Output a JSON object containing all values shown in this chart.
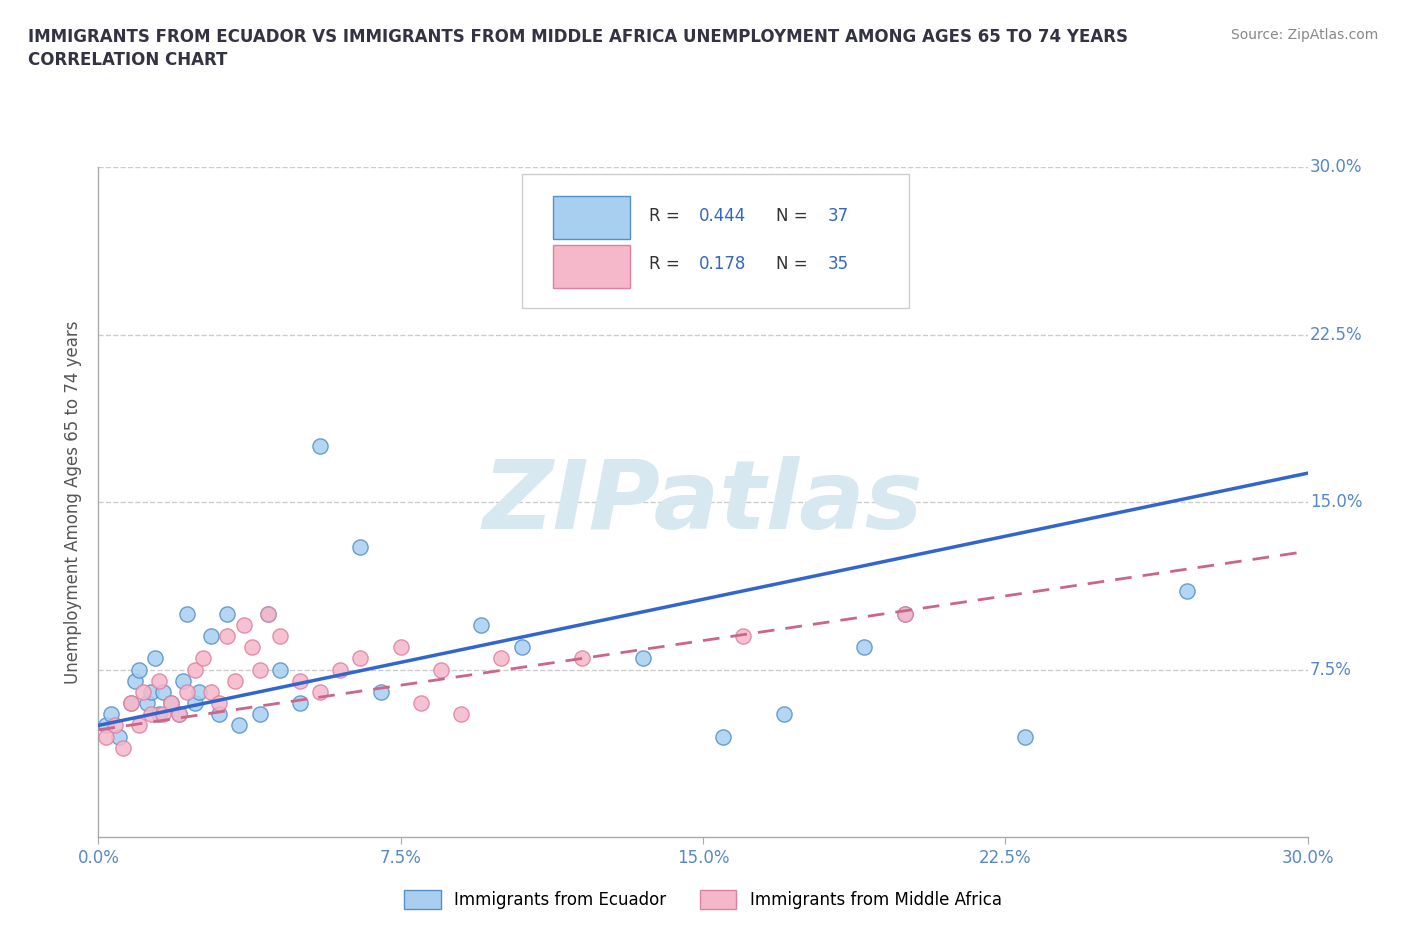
{
  "title_line1": "IMMIGRANTS FROM ECUADOR VS IMMIGRANTS FROM MIDDLE AFRICA UNEMPLOYMENT AMONG AGES 65 TO 74 YEARS",
  "title_line2": "CORRELATION CHART",
  "source_text": "Source: ZipAtlas.com",
  "ylabel": "Unemployment Among Ages 65 to 74 years",
  "xlim": [
    0.0,
    0.3
  ],
  "ylim": [
    0.0,
    0.3
  ],
  "xticks": [
    0.0,
    0.075,
    0.15,
    0.225,
    0.3
  ],
  "yticks": [
    0.075,
    0.15,
    0.225,
    0.3
  ],
  "xticklabels": [
    "0.0%",
    "7.5%",
    "15.0%",
    "22.5%",
    "30.0%"
  ],
  "yticklabels_right": [
    "7.5%",
    "15.0%",
    "22.5%",
    "30.0%"
  ],
  "ecuador_color": "#a8cff0",
  "ecuador_edge": "#5590c8",
  "middle_africa_color": "#f5b8cb",
  "middle_africa_edge": "#e080a0",
  "ecuador_line_color": "#3366cc",
  "middle_africa_line_color": "#cc6688",
  "ecuador_R": 0.444,
  "ecuador_N": 37,
  "middle_africa_R": 0.178,
  "middle_africa_N": 35,
  "watermark": "ZIPatlas",
  "legend_label_ecuador": "Immigrants from Ecuador",
  "legend_label_middle_africa": "Immigrants from Middle Africa",
  "ecuador_scatter_x": [
    0.002,
    0.003,
    0.005,
    0.008,
    0.009,
    0.01,
    0.012,
    0.013,
    0.014,
    0.015,
    0.016,
    0.018,
    0.02,
    0.021,
    0.022,
    0.024,
    0.025,
    0.028,
    0.03,
    0.032,
    0.035,
    0.04,
    0.042,
    0.045,
    0.05,
    0.055,
    0.065,
    0.07,
    0.095,
    0.105,
    0.135,
    0.155,
    0.17,
    0.19,
    0.2,
    0.23,
    0.27
  ],
  "ecuador_scatter_y": [
    0.05,
    0.055,
    0.045,
    0.06,
    0.07,
    0.075,
    0.06,
    0.065,
    0.08,
    0.055,
    0.065,
    0.06,
    0.055,
    0.07,
    0.1,
    0.06,
    0.065,
    0.09,
    0.055,
    0.1,
    0.05,
    0.055,
    0.1,
    0.075,
    0.06,
    0.175,
    0.13,
    0.065,
    0.095,
    0.085,
    0.08,
    0.045,
    0.055,
    0.085,
    0.1,
    0.045,
    0.11
  ],
  "middle_africa_scatter_x": [
    0.002,
    0.004,
    0.006,
    0.008,
    0.01,
    0.011,
    0.013,
    0.015,
    0.016,
    0.018,
    0.02,
    0.022,
    0.024,
    0.026,
    0.028,
    0.03,
    0.032,
    0.034,
    0.036,
    0.038,
    0.04,
    0.042,
    0.045,
    0.05,
    0.055,
    0.06,
    0.065,
    0.075,
    0.08,
    0.085,
    0.09,
    0.1,
    0.12,
    0.16,
    0.2
  ],
  "middle_africa_scatter_y": [
    0.045,
    0.05,
    0.04,
    0.06,
    0.05,
    0.065,
    0.055,
    0.07,
    0.055,
    0.06,
    0.055,
    0.065,
    0.075,
    0.08,
    0.065,
    0.06,
    0.09,
    0.07,
    0.095,
    0.085,
    0.075,
    0.1,
    0.09,
    0.07,
    0.065,
    0.075,
    0.08,
    0.085,
    0.06,
    0.075,
    0.055,
    0.08,
    0.08,
    0.09,
    0.1
  ],
  "ecuador_trend_x0": 0.0,
  "ecuador_trend_x1": 0.3,
  "ecuador_trend_y0": 0.05,
  "ecuador_trend_y1": 0.163,
  "middle_africa_trend_x0": 0.0,
  "middle_africa_trend_x1": 0.3,
  "middle_africa_trend_y0": 0.048,
  "middle_africa_trend_y1": 0.128,
  "background_color": "#ffffff",
  "grid_color": "#cccccc",
  "tick_color": "#5588cc",
  "title_color": "#333344",
  "watermark_color": "#d8e8f0"
}
